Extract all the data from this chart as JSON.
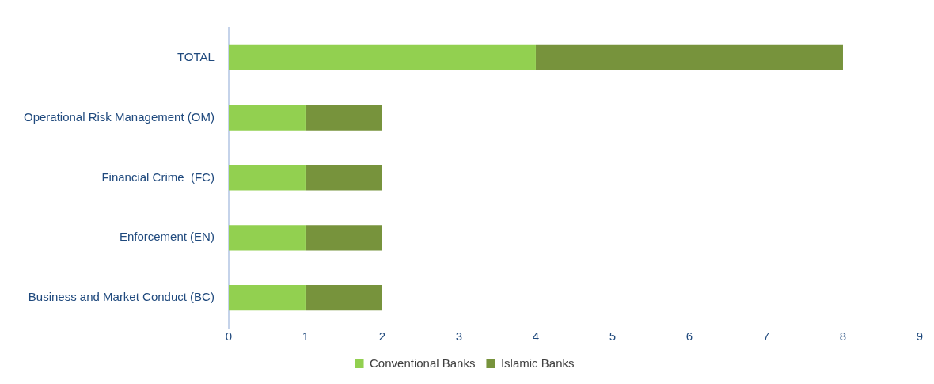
{
  "chart_data": {
    "type": "bar",
    "orientation": "horizontal",
    "stacked": true,
    "categories": [
      "TOTAL",
      "Operational Risk Management (OM)",
      "Financial Crime  (FC)",
      "Enforcement (EN)",
      "Business and Market Conduct (BC)"
    ],
    "series": [
      {
        "name": "Conventional Banks",
        "color": "#92d050",
        "values": [
          4,
          1,
          1,
          1,
          1
        ]
      },
      {
        "name": "Islamic Banks",
        "color": "#77933c",
        "values": [
          4,
          1,
          1,
          1,
          1
        ]
      }
    ],
    "xlim": [
      0,
      9
    ],
    "xticks": [
      0,
      1,
      2,
      3,
      4,
      5,
      6,
      7,
      8,
      9
    ],
    "grid": false,
    "legend": "bottom"
  }
}
